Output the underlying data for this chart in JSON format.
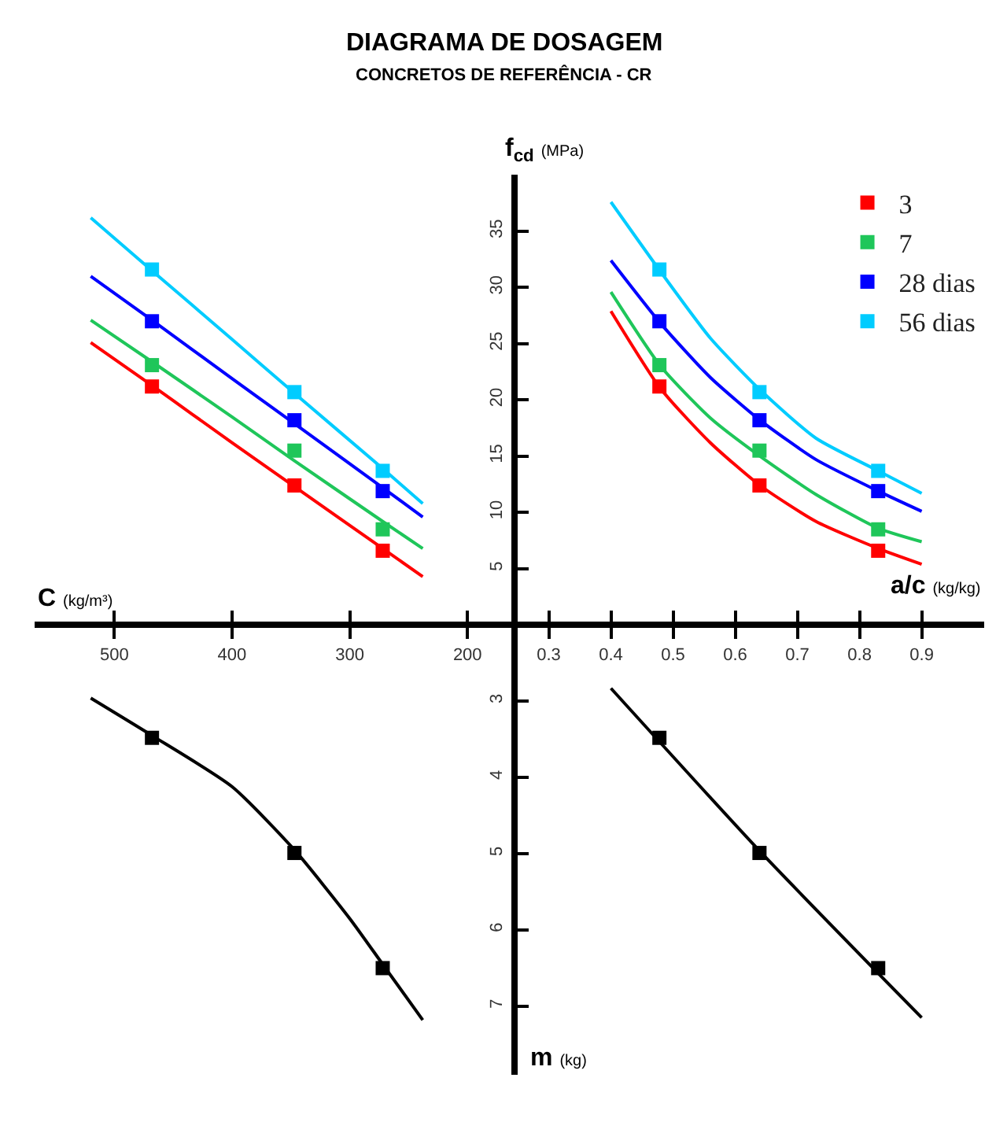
{
  "chart_data": [
    {
      "type": "line",
      "title": "DIAGRAMA DE DOSAGEM",
      "subtitle": "CONCRETOS DE REFERÊNCIA - CR",
      "xlabel": "C (kg/m³)",
      "xlim": [
        568,
        160
      ],
      "ylim": [
        0,
        40
      ],
      "xticks": [
        500,
        400,
        300,
        200
      ],
      "yticks": [
        5,
        10,
        15,
        20,
        25,
        30,
        35
      ],
      "series": [
        {
          "type": "scatter",
          "color": "#ff0000",
          "x": [
            468,
            347,
            272
          ],
          "values": [
            21.2,
            12.4,
            6.6
          ]
        },
        {
          "type": "scatter",
          "color": "#1fc65a",
          "x": [
            468,
            347,
            272
          ],
          "values": [
            23.1,
            15.5,
            8.5
          ]
        },
        {
          "type": "scatter",
          "color": "#0000ff",
          "x": [
            468,
            347,
            272
          ],
          "values": [
            27.0,
            18.2,
            11.9
          ]
        },
        {
          "type": "scatter",
          "color": "#00ccff",
          "x": [
            468,
            347,
            272
          ],
          "values": [
            31.6,
            20.7,
            13.7
          ]
        },
        {
          "type": "line",
          "color": "#ff0000",
          "x": [
            520,
            468,
            400,
            347,
            272,
            238
          ],
          "values": [
            25.1,
            21.3,
            16.2,
            12.3,
            6.8,
            4.3
          ]
        },
        {
          "type": "line",
          "color": "#1fc65a",
          "x": [
            520,
            468,
            400,
            347,
            272,
            238
          ],
          "values": [
            27.1,
            23.4,
            18.5,
            14.6,
            9.2,
            6.8
          ]
        },
        {
          "type": "line",
          "color": "#0000ff",
          "x": [
            520,
            468,
            400,
            347,
            272,
            238
          ],
          "values": [
            31.0,
            27.1,
            21.9,
            17.9,
            12.2,
            9.6
          ]
        },
        {
          "type": "line",
          "color": "#00ccff",
          "x": [
            520,
            468,
            400,
            347,
            272,
            238
          ],
          "values": [
            36.2,
            31.5,
            25.4,
            20.6,
            13.9,
            10.8
          ]
        }
      ]
    },
    {
      "type": "line",
      "xlabel": "a/c (kg/kg)",
      "ylabel": "f$_{cd}$ (MPa)",
      "xlim": [
        0.245,
        1.0
      ],
      "ylim": [
        0,
        40
      ],
      "xticks": [
        0.3,
        0.4,
        0.5,
        0.6,
        0.7,
        0.8,
        0.9
      ],
      "yticks": [
        5,
        10,
        15,
        20,
        25,
        30,
        35
      ],
      "tick_labels": "x",
      "legend": "top right",
      "series": [
        {
          "type": "scatter",
          "name": "3",
          "color": "#ff0000",
          "x": [
            0.478,
            0.639,
            0.83
          ],
          "values": [
            21.2,
            12.4,
            6.6
          ]
        },
        {
          "type": "scatter",
          "name": "7",
          "color": "#1fc65a",
          "x": [
            0.478,
            0.639,
            0.83
          ],
          "values": [
            23.1,
            15.5,
            8.5
          ]
        },
        {
          "type": "scatter",
          "name": "28 dias",
          "color": "#0000ff",
          "x": [
            0.478,
            0.639,
            0.83
          ],
          "values": [
            27.0,
            18.2,
            11.9
          ]
        },
        {
          "type": "scatter",
          "name": "56 dias",
          "color": "#00ccff",
          "x": [
            0.478,
            0.639,
            0.83
          ],
          "values": [
            31.6,
            20.7,
            13.7
          ]
        },
        {
          "type": "line",
          "color": "#ff0000",
          "x": [
            0.4,
            0.48,
            0.56,
            0.64,
            0.73,
            0.83,
            0.9
          ],
          "values": [
            27.9,
            21.0,
            16.2,
            12.4,
            9.2,
            6.8,
            5.4
          ]
        },
        {
          "type": "line",
          "color": "#1fc65a",
          "x": [
            0.4,
            0.48,
            0.56,
            0.64,
            0.73,
            0.83,
            0.9
          ],
          "values": [
            29.6,
            23.0,
            18.4,
            15.0,
            11.6,
            8.6,
            7.4
          ]
        },
        {
          "type": "line",
          "color": "#0000ff",
          "x": [
            0.4,
            0.48,
            0.56,
            0.64,
            0.73,
            0.83,
            0.9
          ],
          "values": [
            32.4,
            26.8,
            22.0,
            18.2,
            14.7,
            11.9,
            10.1
          ]
        },
        {
          "type": "line",
          "color": "#00ccff",
          "x": [
            0.4,
            0.48,
            0.56,
            0.64,
            0.73,
            0.83,
            0.9
          ],
          "values": [
            37.6,
            31.4,
            25.5,
            20.9,
            16.6,
            13.7,
            11.7
          ]
        }
      ]
    },
    {
      "type": "line",
      "xlim": [
        568,
        160
      ],
      "ylim": [
        7.9,
        2
      ],
      "xticks": [
        500,
        400,
        300,
        200
      ],
      "yticks": [
        3,
        4,
        5,
        6,
        7
      ],
      "tick_labels": "y",
      "series": [
        {
          "type": "scatter",
          "color": "#000000",
          "x": [
            468,
            347,
            272
          ],
          "values": [
            3.48,
            4.99,
            6.5
          ]
        },
        {
          "type": "line",
          "color": "#000000",
          "x": [
            520,
            468,
            400,
            347,
            300,
            272,
            238
          ],
          "values": [
            2.96,
            3.45,
            4.12,
            4.95,
            5.85,
            6.45,
            7.18
          ]
        }
      ]
    },
    {
      "type": "line",
      "ylabel": "m (kg)",
      "xlim": [
        0.245,
        1.0
      ],
      "ylim": [
        7.9,
        2
      ],
      "xticks": [
        0.3,
        0.4,
        0.5,
        0.6,
        0.7,
        0.8,
        0.9
      ],
      "yticks": [
        3,
        4,
        5,
        6,
        7
      ],
      "tick_labels": false,
      "series": [
        {
          "type": "scatter",
          "color": "#000000",
          "x": [
            0.478,
            0.639,
            0.83
          ],
          "values": [
            3.48,
            4.99,
            6.5
          ]
        },
        {
          "type": "line",
          "color": "#000000",
          "x": [
            0.4,
            0.64,
            0.9
          ],
          "values": [
            2.83,
            4.97,
            7.15
          ]
        }
      ]
    }
  ]
}
